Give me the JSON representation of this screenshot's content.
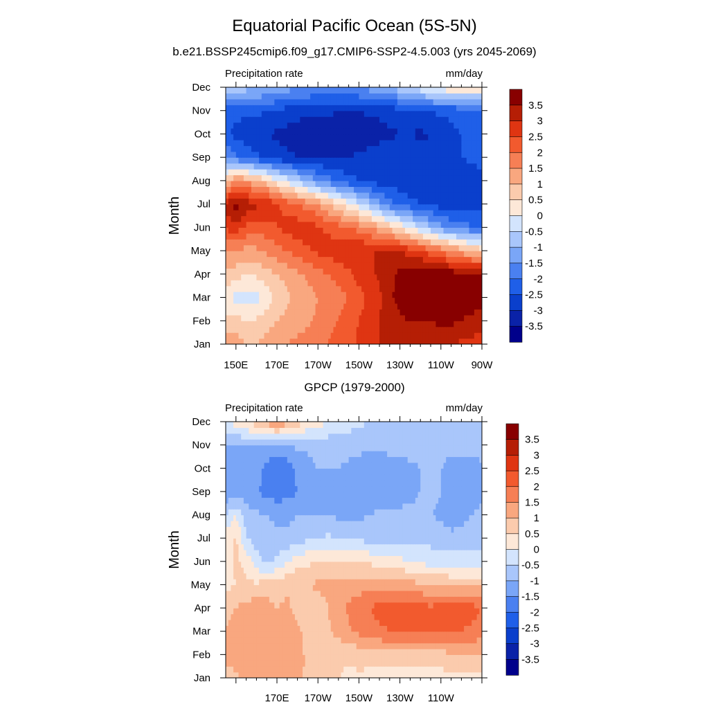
{
  "figure": {
    "title": "Equatorial Pacific Ocean (5S-5N)"
  },
  "colorbar": {
    "colors": [
      "#00008b",
      "#0a22a8",
      "#0a3fcc",
      "#1f5fe8",
      "#4a80f0",
      "#7aa6f7",
      "#a9c6fb",
      "#d3e4fd",
      "#fde8d8",
      "#fbcbad",
      "#f9a77f",
      "#f67f55",
      "#f25a2e",
      "#df3512",
      "#b51e05",
      "#880000"
    ],
    "labels": [
      "3.5",
      "3",
      "2.5",
      "2",
      "1.5",
      "1",
      "0.5",
      "0",
      "-0.5",
      "-1",
      "-1.5",
      "-2",
      "-2.5",
      "-3",
      "-3.5"
    ],
    "levels": [
      3.5,
      3,
      2.5,
      2,
      1.5,
      1,
      0.5,
      0,
      -0.5,
      -1,
      -1.5,
      -2,
      -2.5,
      -3,
      -3.5
    ]
  },
  "chart_data": [
    {
      "type": "heatmap",
      "title": "b.e21.BSSP245cmip6.f09_g17.CMIP6-SSP2-4.5.003 (yrs 2045-2069)",
      "left_string": "Precipitation rate",
      "right_string": "mm/day",
      "xlabel": "",
      "ylabel": "Month",
      "x_ticklabels": [
        "150E",
        "170E",
        "170W",
        "150W",
        "130W",
        "110W",
        "90W"
      ],
      "y_ticklabels": [
        "Jan",
        "Feb",
        "Mar",
        "Apr",
        "May",
        "Jun",
        "Jul",
        "Aug",
        "Sep",
        "Oct",
        "Nov",
        "Dec"
      ],
      "xlim": [
        145,
        270
      ],
      "ylim": [
        1,
        12
      ],
      "lon": [
        145,
        150,
        155,
        160,
        165,
        170,
        175,
        180,
        185,
        190,
        195,
        200,
        205,
        210,
        215,
        220,
        225,
        230,
        235,
        240,
        245,
        250,
        255,
        260,
        265,
        270
      ],
      "months": [
        "Jan",
        "Feb",
        "Mar",
        "Apr",
        "May",
        "Jun",
        "Jul",
        "Aug",
        "Sep",
        "Oct",
        "Nov",
        "Dec"
      ],
      "values": [
        [
          1.4,
          1.3,
          1.0,
          1.0,
          1.2,
          1.3,
          1.5,
          1.6,
          1.7,
          1.8,
          2.0,
          2.2,
          2.3,
          2.6,
          2.8,
          3.0,
          3.1,
          3.1,
          3.2,
          3.2,
          3.2,
          3.1,
          3.0,
          2.9,
          2.8,
          2.7
        ],
        [
          0.7,
          0.7,
          0.5,
          0.6,
          0.8,
          1.0,
          1.2,
          1.3,
          1.4,
          1.6,
          1.8,
          2.0,
          2.2,
          2.5,
          2.8,
          3.0,
          3.2,
          3.4,
          3.5,
          3.5,
          3.5,
          3.6,
          3.6,
          3.5,
          3.4,
          3.3
        ],
        [
          0.2,
          -0.2,
          -0.3,
          -0.2,
          0.2,
          0.6,
          0.9,
          1.1,
          1.3,
          1.5,
          1.6,
          1.8,
          2.0,
          2.3,
          2.6,
          2.9,
          3.4,
          3.7,
          3.9,
          3.9,
          3.9,
          3.9,
          3.9,
          3.8,
          3.7,
          3.6
        ],
        [
          0.9,
          0.7,
          0.5,
          0.6,
          0.8,
          1.0,
          1.2,
          1.4,
          1.6,
          1.8,
          2.0,
          2.2,
          2.4,
          2.7,
          2.9,
          3.1,
          3.4,
          3.6,
          3.8,
          3.9,
          3.9,
          3.8,
          3.8,
          3.7,
          3.6,
          3.5
        ],
        [
          1.6,
          1.5,
          1.3,
          1.4,
          1.6,
          1.8,
          2.0,
          2.2,
          2.4,
          2.6,
          2.7,
          2.8,
          2.9,
          3.0,
          3.0,
          3.0,
          3.0,
          3.0,
          2.8,
          2.5,
          2.2,
          1.9,
          1.6,
          1.3,
          1.0,
          0.8
        ],
        [
          2.6,
          2.8,
          2.4,
          2.2,
          2.3,
          2.5,
          2.7,
          2.8,
          2.8,
          2.6,
          2.4,
          2.2,
          2.0,
          1.8,
          1.5,
          1.2,
          0.8,
          0.4,
          0.0,
          -0.5,
          -0.9,
          -1.3,
          -1.6,
          -1.8,
          -1.9,
          -2.0
        ],
        [
          3.2,
          3.8,
          3.3,
          3.1,
          3.0,
          2.6,
          2.3,
          2.0,
          1.8,
          1.5,
          1.0,
          0.6,
          0.2,
          -0.3,
          -0.8,
          -1.3,
          -1.8,
          -2.1,
          -2.3,
          -2.5,
          -2.6,
          -2.7,
          -2.8,
          -2.8,
          -2.8,
          -2.7
        ],
        [
          0.8,
          1.5,
          1.4,
          1.1,
          0.7,
          0.2,
          -0.2,
          -0.6,
          -1.1,
          -1.5,
          -1.8,
          -2.1,
          -2.3,
          -2.5,
          -2.6,
          -2.7,
          -2.8,
          -2.8,
          -2.9,
          -2.9,
          -3.0,
          -2.9,
          -2.9,
          -2.8,
          -2.8,
          -2.7
        ],
        [
          -1.5,
          -1.9,
          -2.1,
          -2.4,
          -2.6,
          -2.8,
          -2.9,
          -3.0,
          -3.0,
          -3.0,
          -3.0,
          -3.0,
          -3.0,
          -2.9,
          -2.8,
          -2.7,
          -2.6,
          -2.6,
          -2.7,
          -2.8,
          -2.9,
          -2.8,
          -2.6,
          -2.5,
          -2.4,
          -2.3
        ],
        [
          -2.3,
          -2.7,
          -2.8,
          -2.9,
          -3.0,
          -3.1,
          -3.2,
          -3.3,
          -3.4,
          -3.3,
          -3.4,
          -3.5,
          -3.4,
          -3.3,
          -3.3,
          -3.2,
          -3.1,
          -3.0,
          -3.0,
          -3.1,
          -3.0,
          -2.8,
          -2.6,
          -2.5,
          -2.4,
          -2.3
        ],
        [
          -2.3,
          -2.3,
          -2.4,
          -2.4,
          -2.5,
          -2.6,
          -2.7,
          -2.8,
          -2.8,
          -2.9,
          -2.9,
          -3.0,
          -3.0,
          -3.0,
          -2.9,
          -2.9,
          -2.8,
          -2.7,
          -2.6,
          -2.6,
          -2.5,
          -2.4,
          -2.4,
          -2.3,
          -2.3,
          -2.2
        ],
        [
          -0.5,
          -0.6,
          -0.8,
          -0.9,
          -1.0,
          -1.1,
          -1.3,
          -1.4,
          -1.5,
          -1.6,
          -1.6,
          -1.6,
          -1.5,
          -1.4,
          -1.3,
          -1.1,
          -0.9,
          -0.7,
          -0.5,
          -0.2,
          0.1,
          0.3,
          0.4,
          0.4,
          0.4,
          0.4
        ]
      ]
    },
    {
      "type": "heatmap",
      "title": "GPCP (1979-2000)",
      "left_string": "Precipitation rate",
      "right_string": "mm/day",
      "xlabel": "",
      "ylabel": "Month",
      "x_ticklabels": [
        "170E",
        "170W",
        "150W",
        "130W",
        "110W"
      ],
      "y_ticklabels": [
        "Jan",
        "Feb",
        "Mar",
        "Apr",
        "May",
        "Jun",
        "Jul",
        "Aug",
        "Sep",
        "Oct",
        "Nov",
        "Dec"
      ],
      "xlim": [
        145,
        270
      ],
      "ylim": [
        1,
        12
      ],
      "lon": [
        145,
        150,
        155,
        160,
        165,
        170,
        175,
        180,
        185,
        190,
        195,
        200,
        205,
        210,
        215,
        220,
        225,
        230,
        235,
        240,
        245,
        250,
        255,
        260,
        265,
        270
      ],
      "months": [
        "Jan",
        "Feb",
        "Mar",
        "Apr",
        "May",
        "Jun",
        "Jul",
        "Aug",
        "Sep",
        "Oct",
        "Nov",
        "Dec"
      ],
      "values": [
        [
          0.8,
          0.9,
          1.1,
          1.2,
          1.1,
          1.0,
          1.2,
          1.3,
          0.8,
          0.6,
          0.5,
          0.5,
          0.4,
          0.4,
          0.3,
          0.3,
          0.3,
          0.3,
          0.2,
          0.2,
          0.3,
          0.3,
          0.3,
          0.3,
          0.3,
          0.3
        ],
        [
          1.1,
          1.2,
          1.3,
          1.2,
          1.1,
          1.2,
          1.4,
          1.2,
          0.9,
          0.6,
          0.6,
          0.6,
          0.6,
          0.7,
          0.8,
          0.8,
          0.8,
          0.8,
          0.8,
          0.7,
          0.8,
          0.8,
          0.9,
          0.9,
          0.9,
          0.9
        ],
        [
          1.0,
          1.2,
          1.3,
          1.4,
          1.3,
          1.1,
          1.3,
          1.1,
          0.8,
          0.7,
          0.9,
          1.2,
          1.4,
          1.6,
          1.8,
          1.9,
          2.0,
          2.1,
          2.1,
          2.0,
          2.0,
          2.1,
          2.1,
          2.0,
          1.9,
          1.8
        ],
        [
          0.8,
          1.0,
          1.2,
          1.3,
          1.2,
          1.0,
          1.1,
          0.8,
          0.6,
          0.8,
          1.0,
          1.3,
          1.6,
          1.8,
          2.0,
          2.2,
          2.2,
          2.3,
          2.3,
          2.2,
          2.1,
          2.3,
          2.4,
          2.3,
          2.2,
          2.0
        ],
        [
          0.4,
          0.5,
          0.6,
          0.6,
          0.7,
          0.8,
          0.9,
          1.0,
          1.0,
          1.1,
          1.1,
          1.2,
          1.2,
          1.3,
          1.3,
          1.3,
          1.3,
          1.3,
          1.2,
          1.1,
          1.0,
          1.0,
          0.9,
          0.9,
          0.9,
          0.9
        ],
        [
          0.2,
          0.6,
          0.4,
          -0.3,
          -0.6,
          -0.4,
          0.0,
          0.3,
          0.4,
          0.5,
          0.5,
          0.5,
          0.5,
          0.5,
          0.4,
          0.3,
          0.2,
          0.1,
          0.0,
          -0.1,
          -0.2,
          -0.2,
          -0.2,
          -0.2,
          -0.2,
          -0.2
        ],
        [
          0.3,
          0.6,
          -0.5,
          -0.7,
          -0.8,
          -0.9,
          -0.9,
          -0.8,
          -0.6,
          -0.5,
          -0.4,
          -0.5,
          -0.6,
          -0.6,
          -0.7,
          -0.7,
          -0.7,
          -0.6,
          -0.6,
          -0.6,
          -0.7,
          -0.7,
          -0.9,
          -0.9,
          -0.8,
          -0.8
        ],
        [
          -0.6,
          0.0,
          -0.8,
          -0.9,
          -1.0,
          -1.1,
          -1.1,
          -1.0,
          -1.0,
          -1.0,
          -1.0,
          -1.1,
          -1.1,
          -1.1,
          -1.0,
          -0.9,
          -0.9,
          -0.9,
          -0.9,
          -0.9,
          -1.0,
          -1.1,
          -1.2,
          -1.1,
          -1.0,
          -0.9
        ],
        [
          -1.4,
          -1.3,
          -1.2,
          -1.4,
          -1.7,
          -1.8,
          -1.7,
          -1.5,
          -1.3,
          -1.2,
          -1.1,
          -1.2,
          -1.3,
          -1.3,
          -1.3,
          -1.3,
          -1.3,
          -1.2,
          -1.1,
          -1.0,
          -0.9,
          -1.0,
          -1.3,
          -1.3,
          -1.2,
          -1.1
        ],
        [
          -1.2,
          -1.3,
          -1.3,
          -1.3,
          -1.7,
          -2.0,
          -1.8,
          -1.4,
          -1.2,
          -1.0,
          -1.0,
          -1.0,
          -1.1,
          -1.3,
          -1.4,
          -1.4,
          -1.3,
          -1.2,
          -1.1,
          -1.0,
          -1.0,
          -1.0,
          -1.2,
          -1.3,
          -1.2,
          -1.1
        ],
        [
          -1.0,
          -1.0,
          -1.0,
          -1.0,
          -1.1,
          -1.1,
          -1.0,
          -0.9,
          -0.9,
          -0.8,
          -0.8,
          -0.8,
          -0.8,
          -0.8,
          -0.8,
          -0.8,
          -0.8,
          -0.8,
          -0.8,
          -0.8,
          -0.8,
          -0.8,
          -0.8,
          -0.8,
          -0.8,
          -0.8
        ],
        [
          0.0,
          0.2,
          0.5,
          0.8,
          1.2,
          1.5,
          1.2,
          0.8,
          0.4,
          0.2,
          0.0,
          -0.2,
          -0.3,
          -0.4,
          -0.5,
          -0.5,
          -0.5,
          -0.5,
          -0.5,
          -0.5,
          -0.5,
          -0.5,
          -0.5,
          -0.5,
          -0.5,
          -0.5
        ]
      ]
    }
  ]
}
